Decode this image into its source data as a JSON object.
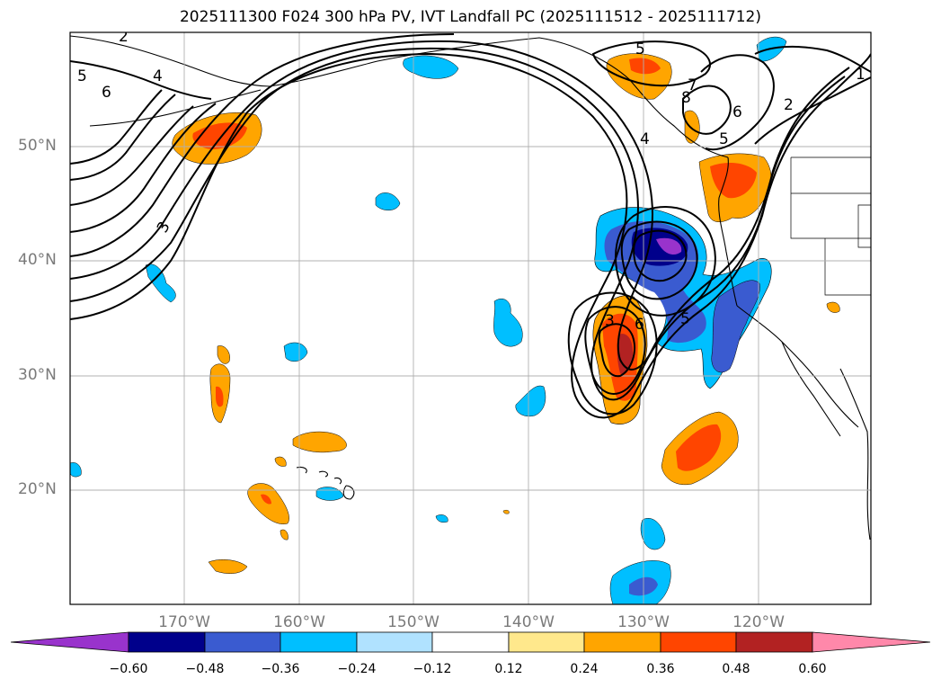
{
  "title": "2025111300 F024 300 hPa PV, IVT Landfall PC (2025111512 - 2025111712)",
  "map": {
    "lat_labels": [
      "50°N",
      "40°N",
      "30°N",
      "20°N"
    ],
    "lon_labels": [
      "170°W",
      "160°W",
      "150°W",
      "140°W",
      "130°W",
      "120°W"
    ],
    "contour_labels": [
      "2",
      "5",
      "4",
      "6",
      "3",
      "5",
      "7",
      "8",
      "6",
      "4",
      "5",
      "2",
      "1",
      "3",
      "6",
      "5"
    ],
    "colors": {
      "land_outline": "#000000",
      "grid": "#b0b0b0",
      "contour": "#000000"
    }
  },
  "colorbar": {
    "ticks": [
      "−0.60",
      "−0.48",
      "−0.36",
      "−0.24",
      "−0.12",
      "0.12",
      "0.24",
      "0.36",
      "0.48",
      "0.60"
    ],
    "colors": [
      "#9933cc",
      "#00008b",
      "#3a5bd0",
      "#00bfff",
      "#b0e2ff",
      "#ffffff",
      "#ffe88c",
      "#ffa500",
      "#ff4500",
      "#b22222",
      "#ff88aa"
    ]
  }
}
